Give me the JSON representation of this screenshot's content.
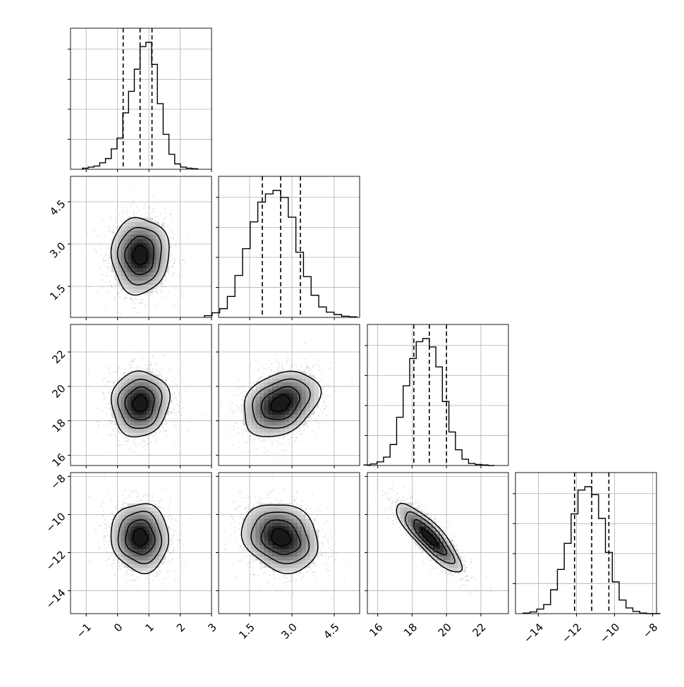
{
  "chart_data": {
    "type": "corner",
    "grid": true,
    "parameters": [
      {
        "ticks": [
          -1,
          0,
          1,
          2,
          3
        ],
        "tick_labels": [
          "−1",
          "0",
          "1",
          "2",
          "3"
        ],
        "range": [
          -1.5,
          3.0
        ],
        "quantiles": [
          0.18,
          0.72,
          1.1
        ]
      },
      {
        "ticks": [
          1.5,
          3.0,
          4.5
        ],
        "tick_labels": [
          "1.5",
          "3.0",
          "4.5"
        ],
        "range": [
          0.4,
          5.4
        ],
        "quantiles": [
          1.95,
          2.6,
          3.3
        ]
      },
      {
        "ticks": [
          16,
          18,
          20,
          22
        ],
        "tick_labels": [
          "16",
          "18",
          "20",
          "22"
        ],
        "range": [
          15.4,
          23.6
        ],
        "quantiles": [
          18.1,
          19.0,
          20.0
        ]
      },
      {
        "ticks": [
          -14,
          -12,
          -10,
          -8
        ],
        "tick_labels": [
          "−14",
          "−12",
          "−10",
          "−8"
        ],
        "range": [
          -15.2,
          -7.8
        ],
        "quantiles": [
          -12.1,
          -11.2,
          -10.3
        ]
      }
    ],
    "histograms": [
      {
        "counts": [
          2,
          4,
          6,
          12,
          20,
          38,
          58,
          105,
          145,
          186,
          228,
          236,
          195,
          122,
          65,
          28,
          10,
          4,
          2,
          1
        ]
      },
      {
        "counts": [
          3,
          8,
          15,
          36,
          72,
          118,
          164,
          198,
          212,
          218,
          206,
          172,
          112,
          70,
          38,
          18,
          9,
          5,
          2,
          1
        ]
      },
      {
        "counts": [
          1,
          3,
          7,
          16,
          40,
          92,
          152,
          204,
          236,
          242,
          226,
          188,
          122,
          64,
          30,
          12,
          4,
          2,
          1,
          0
        ]
      },
      {
        "counts": [
          1,
          3,
          8,
          16,
          42,
          78,
          124,
          176,
          218,
          224,
          210,
          168,
          108,
          56,
          24,
          10,
          4,
          1,
          0,
          0
        ]
      }
    ],
    "correlations": [
      {
        "x": 0,
        "y": 1,
        "rho": 0.02
      },
      {
        "x": 0,
        "y": 2,
        "rho": 0.05
      },
      {
        "x": 1,
        "y": 2,
        "rho": 0.3
      },
      {
        "x": 0,
        "y": 3,
        "rho": -0.05
      },
      {
        "x": 1,
        "y": 3,
        "rho": -0.18
      },
      {
        "x": 2,
        "y": 3,
        "rho": -0.85
      }
    ],
    "contour_levels_sigma": [
      0.5,
      1.0,
      1.5,
      2.0
    ]
  }
}
